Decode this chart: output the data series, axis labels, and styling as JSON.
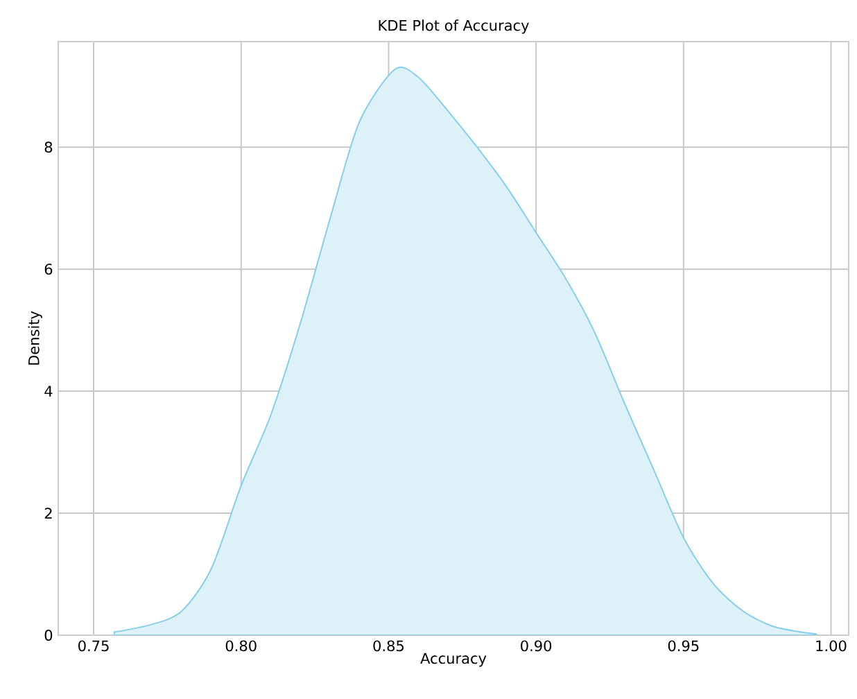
{
  "chart_data": {
    "type": "area",
    "title": "KDE Plot of Accuracy",
    "xlabel": "Accuracy",
    "ylabel": "Density",
    "x": [
      0.757,
      0.77,
      0.78,
      0.79,
      0.8,
      0.81,
      0.82,
      0.83,
      0.84,
      0.852,
      0.86,
      0.87,
      0.88,
      0.89,
      0.9,
      0.91,
      0.92,
      0.93,
      0.94,
      0.95,
      0.96,
      0.97,
      0.98,
      0.99,
      0.995
    ],
    "series": [
      {
        "color": "#87ceeb",
        "values": [
          0.05,
          0.18,
          0.4,
          1.1,
          2.45,
          3.6,
          5.1,
          6.8,
          8.4,
          9.27,
          9.15,
          8.6,
          8.0,
          7.35,
          6.6,
          5.85,
          4.95,
          3.8,
          2.7,
          1.6,
          0.85,
          0.4,
          0.15,
          0.05,
          0.02
        ]
      }
    ],
    "xlim": [
      0.738,
      1.006
    ],
    "ylim": [
      0,
      9.73
    ],
    "xticks": [
      {
        "value": 0.75,
        "label": "0.75"
      },
      {
        "value": 0.8,
        "label": "0.80"
      },
      {
        "value": 0.85,
        "label": "0.85"
      },
      {
        "value": 0.9,
        "label": "0.90"
      },
      {
        "value": 0.95,
        "label": "0.95"
      },
      {
        "value": 1.0,
        "label": "1.00"
      }
    ],
    "yticks": [
      0,
      2,
      4,
      6,
      8
    ],
    "grid": true
  }
}
